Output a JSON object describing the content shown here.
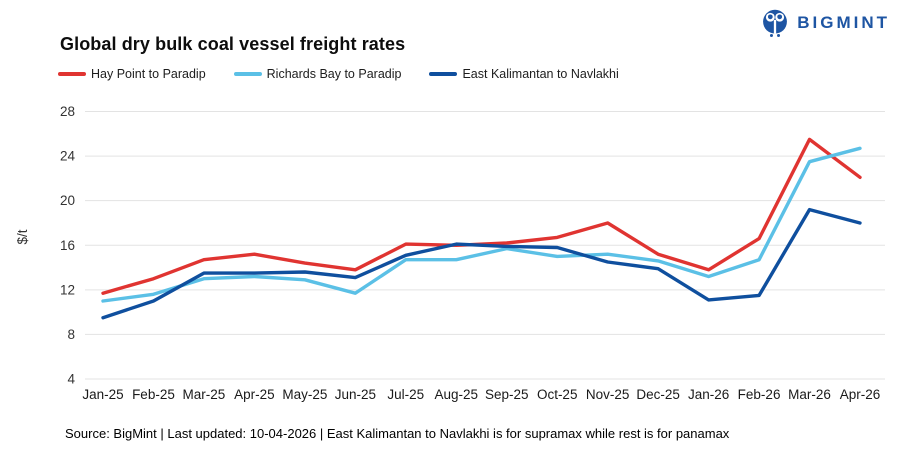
{
  "brand": {
    "name": "BIGMINT",
    "color": "#1e55a3"
  },
  "header": {
    "title": "Global dry bulk coal vessel freight rates"
  },
  "footer": {
    "text": "Source: BigMint | Last updated: 10-04-2026 | East Kalimantan to Navlakhi is for supramax while rest is for panamax"
  },
  "chart_data": {
    "type": "line",
    "title": "Global dry bulk coal vessel freight rates",
    "ylabel": "$/t",
    "xlabel": "",
    "ylim": [
      4,
      28
    ],
    "yticks": [
      28,
      24,
      20,
      16,
      12,
      8,
      4
    ],
    "grid": "horizontal",
    "legend_position": "top-left",
    "categories": [
      "Jan-25",
      "Feb-25",
      "Mar-25",
      "Apr-25",
      "May-25",
      "Jun-25",
      "Jul-25",
      "Aug-25",
      "Sep-25",
      "Oct-25",
      "Nov-25",
      "Dec-25",
      "Jan-26",
      "Feb-26",
      "Mar-26",
      "Apr-26"
    ],
    "series": [
      {
        "name": "Hay Point to Paradip",
        "color": "#e03431",
        "values": [
          11.7,
          13.0,
          14.7,
          15.2,
          14.4,
          13.8,
          16.1,
          16.0,
          16.2,
          16.7,
          18.0,
          15.2,
          13.8,
          16.6,
          25.5,
          22.1
        ]
      },
      {
        "name": "Richards Bay to Paradip",
        "color": "#5bc0e6",
        "values": [
          11.0,
          11.6,
          13.0,
          13.2,
          12.9,
          11.7,
          14.7,
          14.7,
          15.7,
          15.0,
          15.2,
          14.6,
          13.2,
          14.7,
          23.5,
          24.7
        ]
      },
      {
        "name": "East Kalimantan to Navlakhi",
        "color": "#0f4f9e",
        "values": [
          9.5,
          11.0,
          13.5,
          13.5,
          13.6,
          13.1,
          15.1,
          16.1,
          15.9,
          15.8,
          14.5,
          13.9,
          11.1,
          11.5,
          19.2,
          18.0
        ]
      }
    ]
  }
}
